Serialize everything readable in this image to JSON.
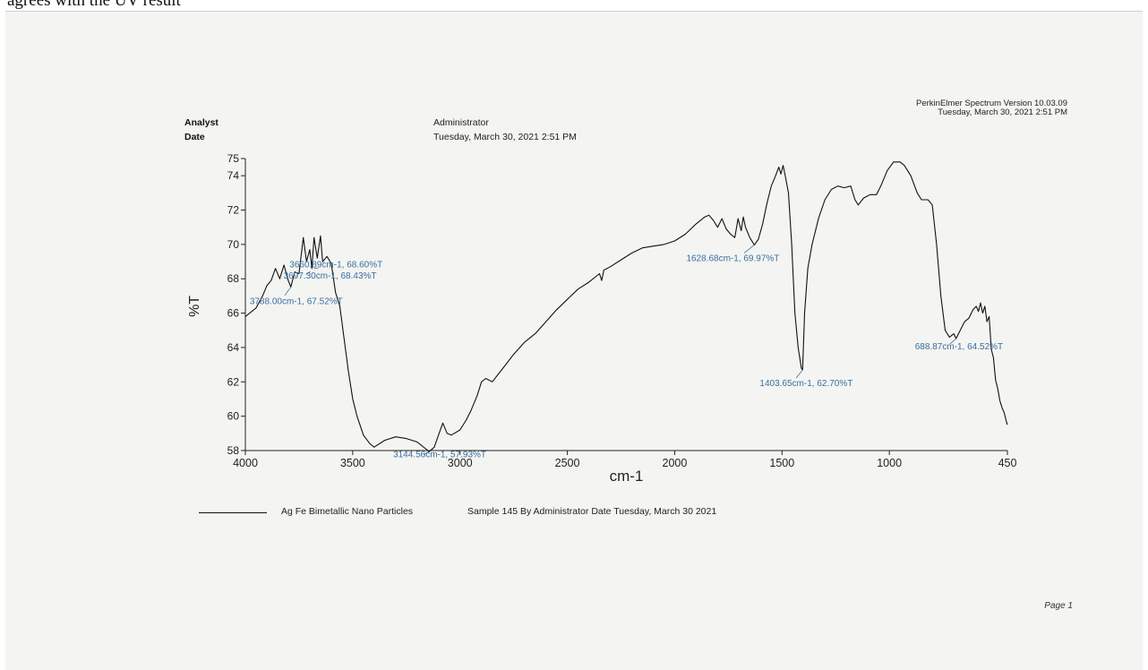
{
  "document": {
    "caption_text": "agrees with the UV result",
    "software": "PerkinElmer Spectrum Version 10.03.09",
    "software_date": "Tuesday, March 30, 2021 2:51 PM",
    "analyst_label": "Analyst",
    "date_label": "Date",
    "analyst_value": "Administrator",
    "date_value": "Tuesday, March 30, 2021 2:51 PM",
    "page": "Page 1",
    "legend_label": "Ag Fe Bimetallic Nano Particles",
    "legend_desc": "Sample 145 By Administrator Date Tuesday, March 30 2021"
  },
  "chart_data": {
    "type": "line",
    "title": "",
    "xlabel": "cm-1",
    "ylabel": "%T",
    "xlim": [
      4000,
      450
    ],
    "ylim": [
      58,
      75
    ],
    "x_ticks": [
      "4000",
      "3500",
      "3000",
      "2500",
      "2000",
      "1500",
      "1000",
      "450"
    ],
    "y_ticks": [
      "58",
      "60",
      "62",
      "64",
      "66",
      "68",
      "70",
      "72",
      "74",
      "75"
    ],
    "grid": false,
    "legend": "bottom",
    "line_color": "#111111",
    "annotation_color": "#3a6f9f",
    "series": [
      {
        "name": "Ag Fe Bimetallic Nano Particles",
        "points": [
          [
            4000,
            65.8
          ],
          [
            3950,
            66.3
          ],
          [
            3920,
            67.0
          ],
          [
            3900,
            67.6
          ],
          [
            3880,
            67.9
          ],
          [
            3860,
            68.6
          ],
          [
            3840,
            68.0
          ],
          [
            3820,
            68.8
          ],
          [
            3800,
            67.9
          ],
          [
            3788,
            67.52
          ],
          [
            3770,
            68.4
          ],
          [
            3750,
            68.3
          ],
          [
            3730,
            70.4
          ],
          [
            3715,
            69.0
          ],
          [
            3700,
            69.7
          ],
          [
            3690,
            68.6
          ],
          [
            3680,
            70.4
          ],
          [
            3665,
            69.2
          ],
          [
            3650,
            70.5
          ],
          [
            3640,
            69.0
          ],
          [
            3620,
            69.3
          ],
          [
            3600,
            68.9
          ],
          [
            3580,
            67.2
          ],
          [
            3560,
            66.4
          ],
          [
            3540,
            64.5
          ],
          [
            3520,
            62.6
          ],
          [
            3500,
            61.0
          ],
          [
            3480,
            60.0
          ],
          [
            3450,
            58.9
          ],
          [
            3420,
            58.4
          ],
          [
            3400,
            58.2
          ],
          [
            3350,
            58.6
          ],
          [
            3300,
            58.8
          ],
          [
            3250,
            58.7
          ],
          [
            3200,
            58.5
          ],
          [
            3150,
            58.0
          ],
          [
            3144,
            57.93
          ],
          [
            3120,
            58.2
          ],
          [
            3100,
            58.9
          ],
          [
            3080,
            59.6
          ],
          [
            3060,
            59.0
          ],
          [
            3040,
            58.9
          ],
          [
            3000,
            59.2
          ],
          [
            2970,
            59.8
          ],
          [
            2950,
            60.3
          ],
          [
            2920,
            61.2
          ],
          [
            2900,
            62.0
          ],
          [
            2880,
            62.2
          ],
          [
            2850,
            62.0
          ],
          [
            2800,
            62.8
          ],
          [
            2750,
            63.6
          ],
          [
            2700,
            64.3
          ],
          [
            2650,
            64.8
          ],
          [
            2600,
            65.5
          ],
          [
            2550,
            66.2
          ],
          [
            2500,
            66.8
          ],
          [
            2450,
            67.4
          ],
          [
            2400,
            67.8
          ],
          [
            2350,
            68.3
          ],
          [
            2340,
            67.9
          ],
          [
            2330,
            68.5
          ],
          [
            2300,
            68.7
          ],
          [
            2250,
            69.1
          ],
          [
            2200,
            69.5
          ],
          [
            2150,
            69.8
          ],
          [
            2100,
            69.9
          ],
          [
            2050,
            70.0
          ],
          [
            2000,
            70.2
          ],
          [
            1950,
            70.6
          ],
          [
            1900,
            71.2
          ],
          [
            1860,
            71.6
          ],
          [
            1840,
            71.7
          ],
          [
            1820,
            71.4
          ],
          [
            1800,
            71.0
          ],
          [
            1780,
            71.5
          ],
          [
            1760,
            70.9
          ],
          [
            1740,
            70.6
          ],
          [
            1720,
            70.4
          ],
          [
            1705,
            71.5
          ],
          [
            1690,
            70.8
          ],
          [
            1680,
            71.6
          ],
          [
            1670,
            71.0
          ],
          [
            1650,
            70.4
          ],
          [
            1629,
            69.97
          ],
          [
            1610,
            70.3
          ],
          [
            1590,
            71.2
          ],
          [
            1570,
            72.4
          ],
          [
            1550,
            73.4
          ],
          [
            1530,
            74.0
          ],
          [
            1515,
            74.5
          ],
          [
            1505,
            74.1
          ],
          [
            1495,
            74.6
          ],
          [
            1485,
            74.0
          ],
          [
            1470,
            73.0
          ],
          [
            1455,
            70.0
          ],
          [
            1440,
            66.0
          ],
          [
            1425,
            64.0
          ],
          [
            1410,
            62.8
          ],
          [
            1404,
            62.7
          ],
          [
            1395,
            66.0
          ],
          [
            1380,
            68.6
          ],
          [
            1360,
            70.0
          ],
          [
            1330,
            71.5
          ],
          [
            1300,
            72.6
          ],
          [
            1270,
            73.2
          ],
          [
            1240,
            73.4
          ],
          [
            1210,
            73.3
          ],
          [
            1180,
            73.4
          ],
          [
            1160,
            72.6
          ],
          [
            1145,
            72.3
          ],
          [
            1120,
            72.7
          ],
          [
            1090,
            72.9
          ],
          [
            1060,
            72.9
          ],
          [
            1040,
            73.4
          ],
          [
            1010,
            74.3
          ],
          [
            980,
            74.8
          ],
          [
            950,
            74.8
          ],
          [
            930,
            74.6
          ],
          [
            900,
            74.0
          ],
          [
            870,
            73.0
          ],
          [
            850,
            72.6
          ],
          [
            820,
            72.6
          ],
          [
            800,
            72.3
          ],
          [
            780,
            70.0
          ],
          [
            760,
            67.0
          ],
          [
            740,
            65.0
          ],
          [
            720,
            64.6
          ],
          [
            700,
            64.8
          ],
          [
            689,
            64.52
          ],
          [
            670,
            65.0
          ],
          [
            650,
            65.5
          ],
          [
            630,
            65.7
          ],
          [
            610,
            66.2
          ],
          [
            595,
            66.4
          ],
          [
            585,
            66.1
          ],
          [
            575,
            66.6
          ],
          [
            565,
            66.0
          ],
          [
            555,
            66.4
          ],
          [
            545,
            65.5
          ],
          [
            535,
            65.8
          ],
          [
            525,
            63.9
          ],
          [
            515,
            63.4
          ],
          [
            505,
            62.1
          ],
          [
            495,
            61.6
          ],
          [
            485,
            60.9
          ],
          [
            475,
            60.5
          ],
          [
            465,
            60.2
          ],
          [
            455,
            59.7
          ],
          [
            450,
            59.5
          ]
        ]
      }
    ],
    "annotations": [
      {
        "text": "3660.89cm-1, 68.60%T",
        "x": 3660.89,
        "y": 68.6
      },
      {
        "text": "3697.30cm-1, 68.43%T",
        "x": 3697.3,
        "y": 68.43
      },
      {
        "text": "3788.00cm-1, 67.52%T",
        "x": 3788.0,
        "y": 67.52
      },
      {
        "text": "3144.56cm-1, 57.93%T",
        "x": 3144.56,
        "y": 57.93
      },
      {
        "text": "1628.68cm-1, 69.97%T",
        "x": 1628.68,
        "y": 69.97
      },
      {
        "text": "1403.65cm-1, 62.70%T",
        "x": 1403.65,
        "y": 62.7
      },
      {
        "text": "688.87cm-1, 64.52%T",
        "x": 688.87,
        "y": 64.52
      }
    ]
  }
}
